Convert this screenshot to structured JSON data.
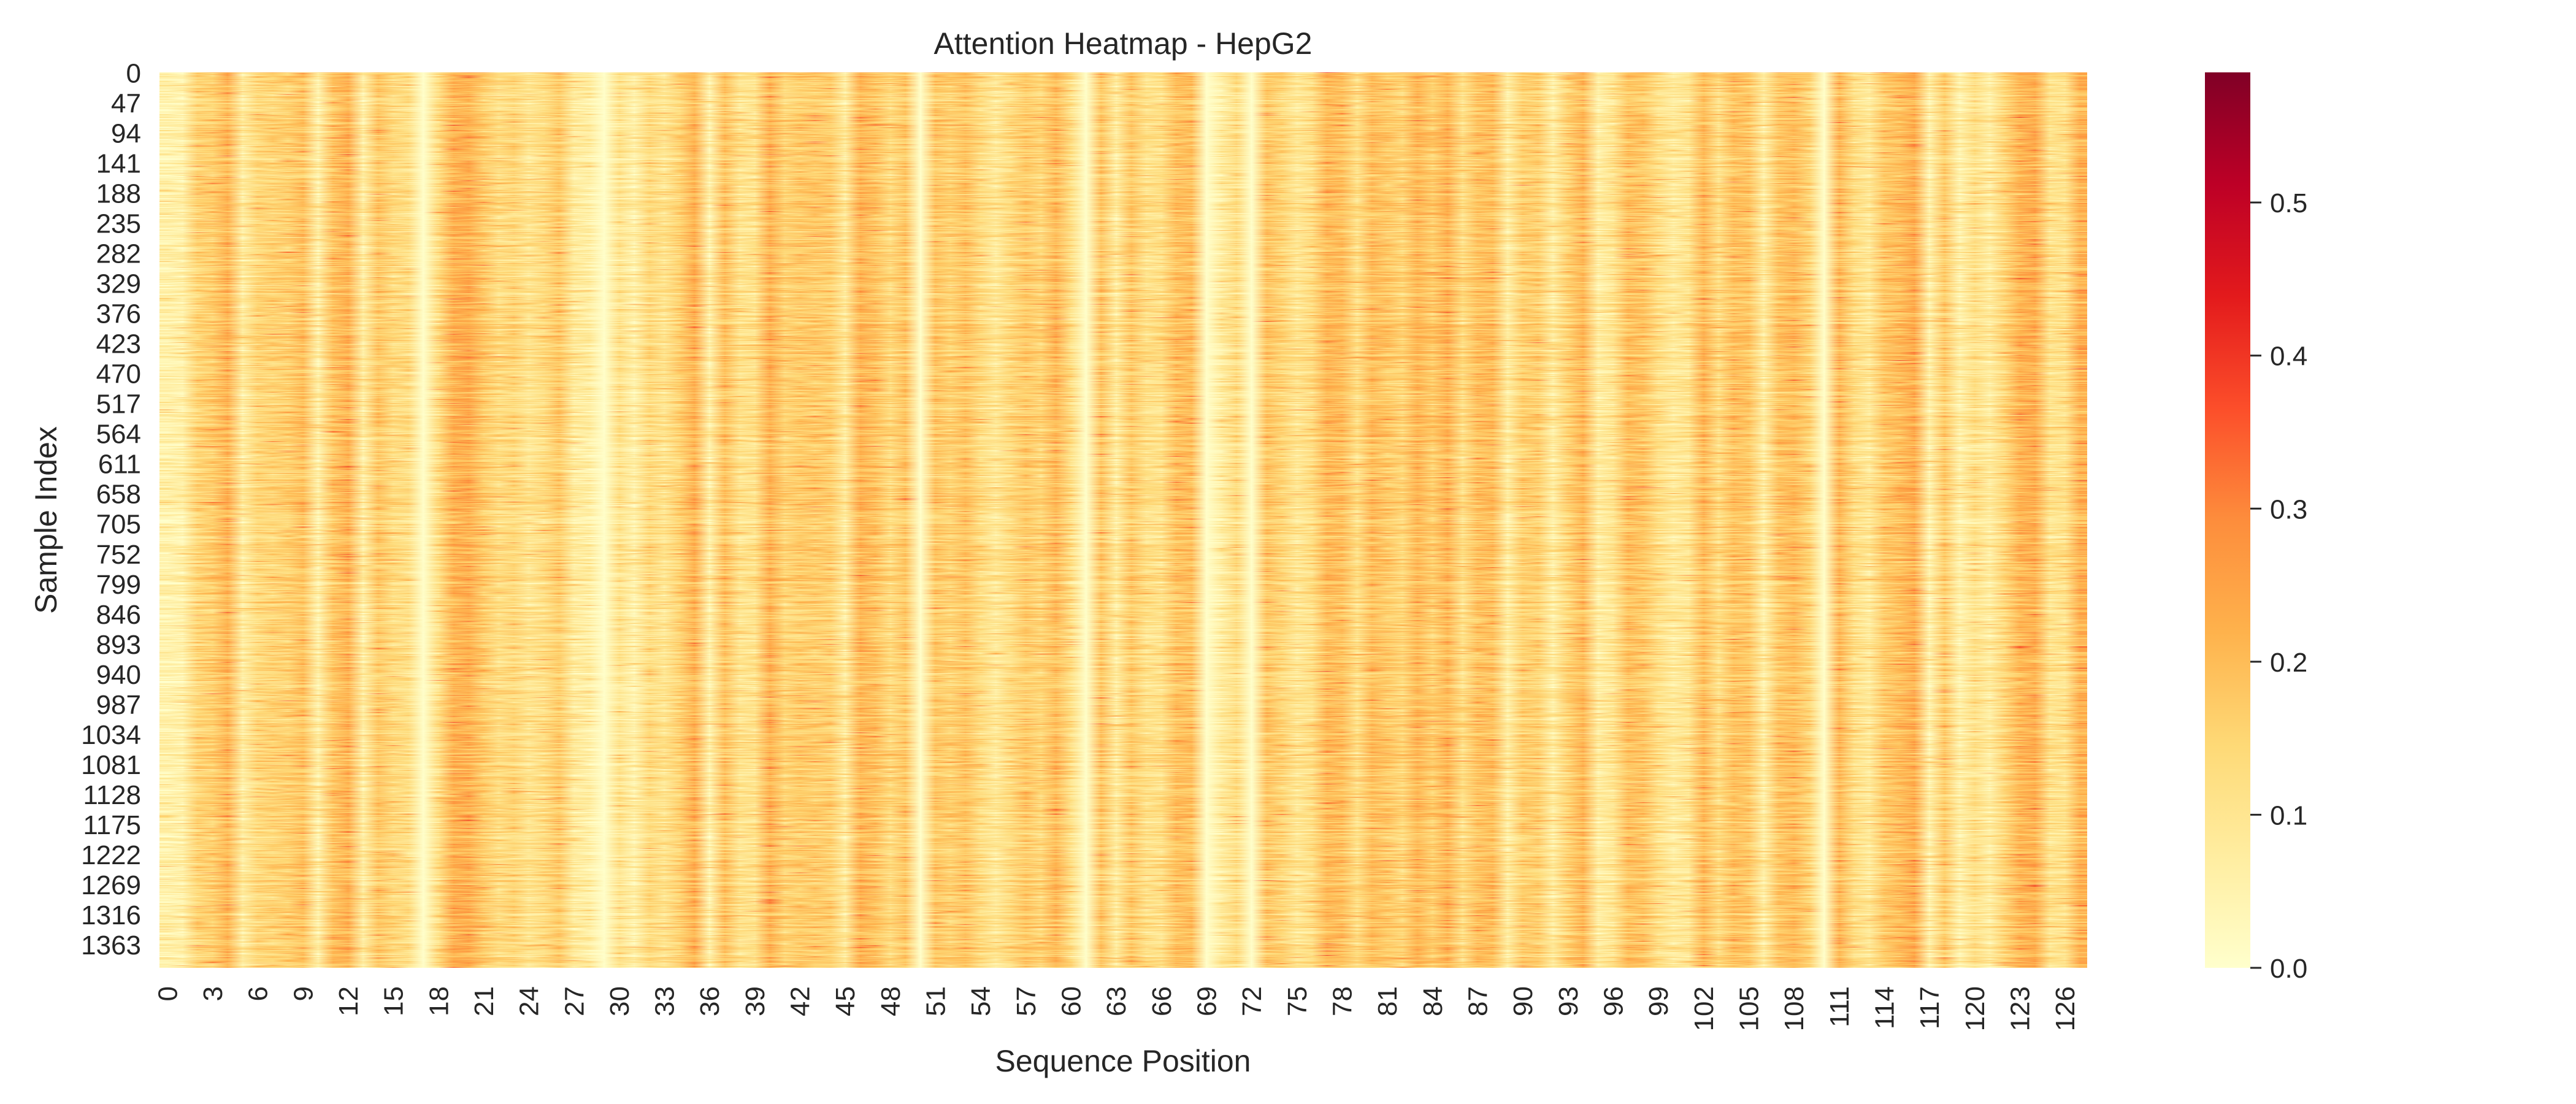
{
  "chart_data": {
    "type": "heatmap",
    "title": "Attention Heatmap - HepG2",
    "xlabel": "Sequence Position",
    "ylabel": "Sample Index",
    "n_rows": 1400,
    "n_cols": 128,
    "x_tick_labels": [
      "0",
      "3",
      "6",
      "9",
      "12",
      "15",
      "18",
      "21",
      "24",
      "27",
      "30",
      "33",
      "36",
      "39",
      "42",
      "45",
      "48",
      "51",
      "54",
      "57",
      "60",
      "63",
      "66",
      "69",
      "72",
      "75",
      "78",
      "81",
      "84",
      "87",
      "90",
      "93",
      "96",
      "99",
      "102",
      "105",
      "108",
      "111",
      "114",
      "117",
      "120",
      "123",
      "126"
    ],
    "y_tick_labels": [
      "0",
      "47",
      "94",
      "141",
      "188",
      "235",
      "282",
      "329",
      "376",
      "423",
      "470",
      "517",
      "564",
      "611",
      "658",
      "705",
      "752",
      "799",
      "846",
      "893",
      "940",
      "987",
      "1034",
      "1081",
      "1128",
      "1175",
      "1222",
      "1269",
      "1316",
      "1363"
    ],
    "colorbar": {
      "range": [
        0.0,
        0.585
      ],
      "ticks": [
        0.0,
        0.1,
        0.2,
        0.3,
        0.4,
        0.5
      ],
      "tick_labels": [
        "0.0",
        "0.1",
        "0.2",
        "0.3",
        "0.4",
        "0.5"
      ],
      "colormap": "YlOrRd",
      "stops": [
        "#ffffcc",
        "#ffeda0",
        "#fed976",
        "#feb24c",
        "#fd8d3c",
        "#fc4e2a",
        "#e31a1c",
        "#bd0026",
        "#800026"
      ]
    },
    "near_zero_columns": [
      17,
      29,
      50,
      61,
      69,
      72,
      110
    ],
    "typical_value_range": [
      0.05,
      0.3
    ],
    "values_note": "Per-cell attention values are not individually readable; most cells fall between about 0.05 and 0.3, with the listed columns near 0.0."
  }
}
